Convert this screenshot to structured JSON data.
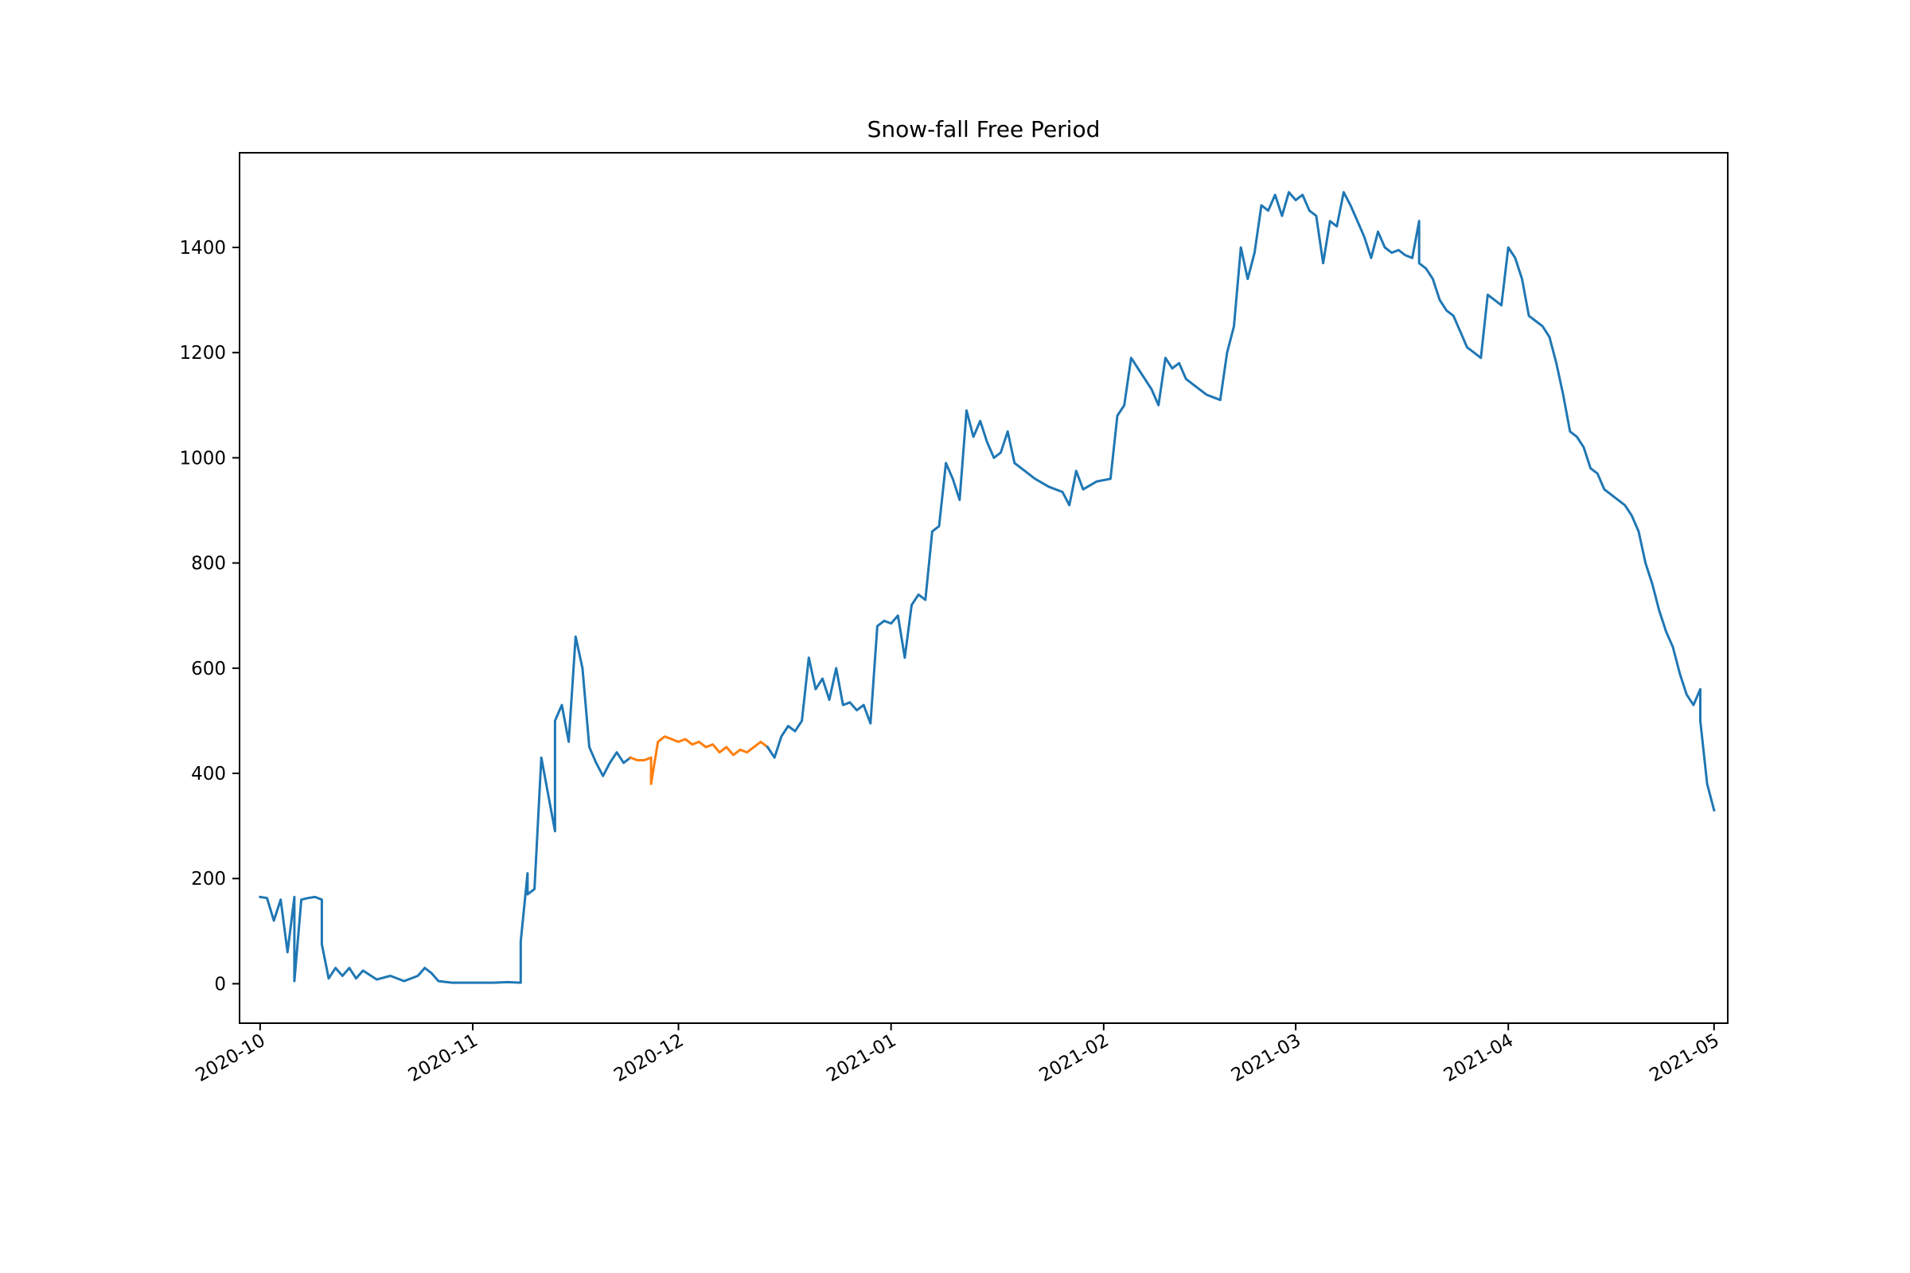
{
  "chart_data": {
    "type": "line",
    "title": "Snow-fall Free Period",
    "xlabel": "",
    "ylabel": "",
    "x_axis": {
      "type": "date",
      "range": [
        "2020-09-28",
        "2021-05-03"
      ],
      "ticks": [
        {
          "date": "2020-10-01",
          "label": "2020-10"
        },
        {
          "date": "2020-11-01",
          "label": "2020-11"
        },
        {
          "date": "2020-12-01",
          "label": "2020-12"
        },
        {
          "date": "2021-01-01",
          "label": "2021-01"
        },
        {
          "date": "2021-02-01",
          "label": "2021-02"
        },
        {
          "date": "2021-03-01",
          "label": "2021-03"
        },
        {
          "date": "2021-04-01",
          "label": "2021-04"
        },
        {
          "date": "2021-05-01",
          "label": "2021-05"
        }
      ]
    },
    "y_axis": {
      "range": [
        -75,
        1580
      ],
      "ticks": [
        0,
        200,
        400,
        600,
        800,
        1000,
        1200,
        1400
      ]
    },
    "grid": false,
    "legend": "none",
    "series": [
      {
        "color": "#1f77b4",
        "points": [
          [
            "2020-10-01",
            165
          ],
          [
            "2020-10-02",
            163
          ],
          [
            "2020-10-03",
            120
          ],
          [
            "2020-10-04",
            160
          ],
          [
            "2020-10-05",
            60
          ],
          [
            "2020-10-06",
            165
          ],
          [
            "2020-10-06",
            5
          ],
          [
            "2020-10-07",
            160
          ],
          [
            "2020-10-08",
            163
          ],
          [
            "2020-10-09",
            165
          ],
          [
            "2020-10-10",
            160
          ],
          [
            "2020-10-10",
            75
          ],
          [
            "2020-10-11",
            10
          ],
          [
            "2020-10-12",
            30
          ],
          [
            "2020-10-13",
            15
          ],
          [
            "2020-10-14",
            30
          ],
          [
            "2020-10-15",
            10
          ],
          [
            "2020-10-16",
            25
          ],
          [
            "2020-10-18",
            8
          ],
          [
            "2020-10-20",
            15
          ],
          [
            "2020-10-22",
            5
          ],
          [
            "2020-10-24",
            15
          ],
          [
            "2020-10-25",
            30
          ],
          [
            "2020-10-26",
            20
          ],
          [
            "2020-10-27",
            5
          ],
          [
            "2020-10-29",
            2
          ],
          [
            "2020-11-01",
            2
          ],
          [
            "2020-11-04",
            2
          ],
          [
            "2020-11-06",
            3
          ],
          [
            "2020-11-08",
            2
          ],
          [
            "2020-11-08",
            80
          ],
          [
            "2020-11-09",
            210
          ],
          [
            "2020-11-09",
            170
          ],
          [
            "2020-11-10",
            180
          ],
          [
            "2020-11-11",
            430
          ],
          [
            "2020-11-12",
            360
          ],
          [
            "2020-11-13",
            290
          ],
          [
            "2020-11-13",
            500
          ],
          [
            "2020-11-14",
            530
          ],
          [
            "2020-11-15",
            460
          ],
          [
            "2020-11-16",
            660
          ],
          [
            "2020-11-17",
            600
          ],
          [
            "2020-11-18",
            450
          ],
          [
            "2020-11-19",
            420
          ],
          [
            "2020-11-20",
            395
          ],
          [
            "2020-11-21",
            420
          ],
          [
            "2020-11-22",
            440
          ],
          [
            "2020-11-23",
            420
          ],
          [
            "2020-11-24",
            430
          ]
        ]
      },
      {
        "color": "#ff7f0e",
        "points": [
          [
            "2020-11-24",
            430
          ],
          [
            "2020-11-25",
            425
          ],
          [
            "2020-11-26",
            425
          ],
          [
            "2020-11-27",
            430
          ],
          [
            "2020-11-27",
            380
          ],
          [
            "2020-11-28",
            460
          ],
          [
            "2020-11-29",
            470
          ],
          [
            "2020-11-30",
            465
          ],
          [
            "2020-12-01",
            460
          ],
          [
            "2020-12-02",
            465
          ],
          [
            "2020-12-03",
            455
          ],
          [
            "2020-12-04",
            460
          ],
          [
            "2020-12-05",
            450
          ],
          [
            "2020-12-06",
            455
          ],
          [
            "2020-12-07",
            440
          ],
          [
            "2020-12-08",
            450
          ],
          [
            "2020-12-09",
            435
          ],
          [
            "2020-12-10",
            445
          ],
          [
            "2020-12-11",
            440
          ],
          [
            "2020-12-12",
            450
          ],
          [
            "2020-12-13",
            460
          ],
          [
            "2020-12-14",
            450
          ]
        ]
      },
      {
        "color": "#1f77b4",
        "points": [
          [
            "2020-12-14",
            450
          ],
          [
            "2020-12-15",
            430
          ],
          [
            "2020-12-16",
            470
          ],
          [
            "2020-12-17",
            490
          ],
          [
            "2020-12-18",
            480
          ],
          [
            "2020-12-19",
            500
          ],
          [
            "2020-12-20",
            620
          ],
          [
            "2020-12-21",
            560
          ],
          [
            "2020-12-22",
            580
          ],
          [
            "2020-12-23",
            540
          ],
          [
            "2020-12-24",
            600
          ],
          [
            "2020-12-25",
            530
          ],
          [
            "2020-12-26",
            535
          ],
          [
            "2020-12-27",
            520
          ],
          [
            "2020-12-28",
            530
          ],
          [
            "2020-12-29",
            495
          ],
          [
            "2020-12-30",
            680
          ],
          [
            "2020-12-31",
            690
          ],
          [
            "2021-01-01",
            685
          ],
          [
            "2021-01-02",
            700
          ],
          [
            "2021-01-03",
            620
          ],
          [
            "2021-01-04",
            720
          ],
          [
            "2021-01-05",
            740
          ],
          [
            "2021-01-06",
            730
          ],
          [
            "2021-01-07",
            860
          ],
          [
            "2021-01-08",
            870
          ],
          [
            "2021-01-09",
            990
          ],
          [
            "2021-01-10",
            960
          ],
          [
            "2021-01-11",
            920
          ],
          [
            "2021-01-12",
            1090
          ],
          [
            "2021-01-13",
            1040
          ],
          [
            "2021-01-14",
            1070
          ],
          [
            "2021-01-15",
            1030
          ],
          [
            "2021-01-16",
            1000
          ],
          [
            "2021-01-17",
            1010
          ],
          [
            "2021-01-18",
            1050
          ],
          [
            "2021-01-19",
            990
          ],
          [
            "2021-01-20",
            980
          ],
          [
            "2021-01-22",
            960
          ],
          [
            "2021-01-24",
            945
          ],
          [
            "2021-01-26",
            935
          ],
          [
            "2021-01-27",
            910
          ],
          [
            "2021-01-28",
            975
          ],
          [
            "2021-01-29",
            940
          ],
          [
            "2021-01-31",
            955
          ],
          [
            "2021-02-02",
            960
          ],
          [
            "2021-02-03",
            1080
          ],
          [
            "2021-02-04",
            1100
          ],
          [
            "2021-02-05",
            1190
          ],
          [
            "2021-02-06",
            1170
          ],
          [
            "2021-02-07",
            1150
          ],
          [
            "2021-02-08",
            1130
          ],
          [
            "2021-02-09",
            1100
          ],
          [
            "2021-02-10",
            1190
          ],
          [
            "2021-02-11",
            1170
          ],
          [
            "2021-02-12",
            1180
          ],
          [
            "2021-02-13",
            1150
          ],
          [
            "2021-02-14",
            1140
          ],
          [
            "2021-02-16",
            1120
          ],
          [
            "2021-02-18",
            1110
          ],
          [
            "2021-02-19",
            1200
          ],
          [
            "2021-02-20",
            1250
          ],
          [
            "2021-02-21",
            1400
          ],
          [
            "2021-02-22",
            1340
          ],
          [
            "2021-02-23",
            1390
          ],
          [
            "2021-02-24",
            1480
          ],
          [
            "2021-02-25",
            1470
          ],
          [
            "2021-02-26",
            1500
          ],
          [
            "2021-02-27",
            1460
          ],
          [
            "2021-02-28",
            1505
          ],
          [
            "2021-03-01",
            1490
          ],
          [
            "2021-03-02",
            1500
          ],
          [
            "2021-03-03",
            1470
          ],
          [
            "2021-03-04",
            1460
          ],
          [
            "2021-03-05",
            1370
          ],
          [
            "2021-03-06",
            1450
          ],
          [
            "2021-03-07",
            1440
          ],
          [
            "2021-03-08",
            1505
          ],
          [
            "2021-03-09",
            1480
          ],
          [
            "2021-03-10",
            1450
          ],
          [
            "2021-03-11",
            1420
          ],
          [
            "2021-03-12",
            1380
          ],
          [
            "2021-03-13",
            1430
          ],
          [
            "2021-03-14",
            1400
          ],
          [
            "2021-03-15",
            1390
          ],
          [
            "2021-03-16",
            1395
          ],
          [
            "2021-03-17",
            1385
          ],
          [
            "2021-03-18",
            1380
          ],
          [
            "2021-03-19",
            1450
          ],
          [
            "2021-03-19",
            1370
          ],
          [
            "2021-03-20",
            1360
          ],
          [
            "2021-03-21",
            1340
          ],
          [
            "2021-03-22",
            1300
          ],
          [
            "2021-03-23",
            1280
          ],
          [
            "2021-03-24",
            1270
          ],
          [
            "2021-03-25",
            1240
          ],
          [
            "2021-03-26",
            1210
          ],
          [
            "2021-03-27",
            1200
          ],
          [
            "2021-03-28",
            1190
          ],
          [
            "2021-03-29",
            1310
          ],
          [
            "2021-03-30",
            1300
          ],
          [
            "2021-03-31",
            1290
          ],
          [
            "2021-04-01",
            1400
          ],
          [
            "2021-04-02",
            1380
          ],
          [
            "2021-04-03",
            1340
          ],
          [
            "2021-04-04",
            1270
          ],
          [
            "2021-04-05",
            1260
          ],
          [
            "2021-04-06",
            1250
          ],
          [
            "2021-04-07",
            1230
          ],
          [
            "2021-04-08",
            1180
          ],
          [
            "2021-04-09",
            1120
          ],
          [
            "2021-04-10",
            1050
          ],
          [
            "2021-04-11",
            1040
          ],
          [
            "2021-04-12",
            1020
          ],
          [
            "2021-04-13",
            980
          ],
          [
            "2021-04-14",
            970
          ],
          [
            "2021-04-15",
            940
          ],
          [
            "2021-04-16",
            930
          ],
          [
            "2021-04-17",
            920
          ],
          [
            "2021-04-18",
            910
          ],
          [
            "2021-04-19",
            890
          ],
          [
            "2021-04-20",
            860
          ],
          [
            "2021-04-21",
            800
          ],
          [
            "2021-04-22",
            760
          ],
          [
            "2021-04-23",
            710
          ],
          [
            "2021-04-24",
            670
          ],
          [
            "2021-04-25",
            640
          ],
          [
            "2021-04-26",
            590
          ],
          [
            "2021-04-27",
            550
          ],
          [
            "2021-04-28",
            530
          ],
          [
            "2021-04-29",
            560
          ],
          [
            "2021-04-29",
            500
          ],
          [
            "2021-04-30",
            380
          ],
          [
            "2021-05-01",
            330
          ]
        ]
      }
    ]
  }
}
